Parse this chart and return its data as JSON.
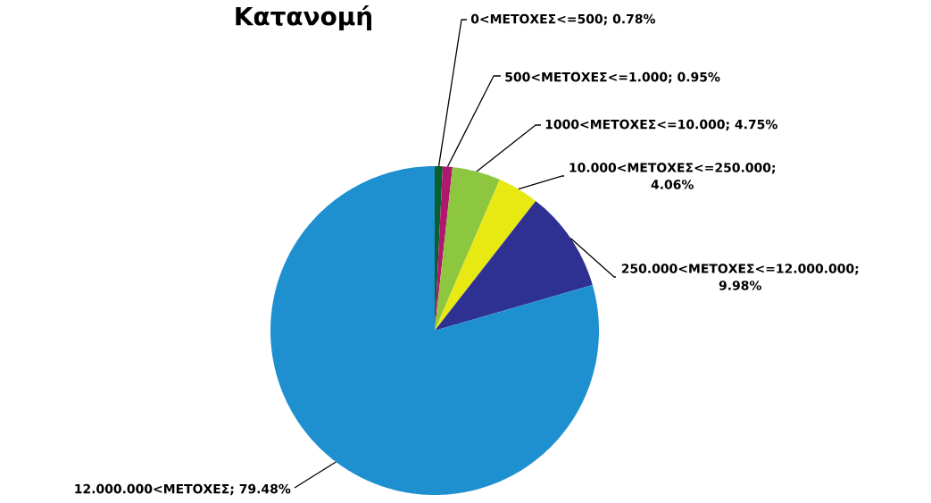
{
  "chart_data": {
    "type": "pie",
    "title": "Κατανομή",
    "categories": [
      "0<ΜΕΤΟΧΕΣ<=500; 0.78%",
      "500<ΜΕΤΟΧΕΣ<=1.000; 0.95%",
      "1000<ΜΕΤΟΧΕΣ<=10.000; 4.75%",
      "10.000<ΜΕΤΟΧΕΣ<=250.000; 4.06%",
      "250.000<ΜΕΤΟΧΕΣ<=12.000.000; 9.98%",
      "12.000.000<ΜΕΤΟΧΕΣ; 79.48%"
    ],
    "values": [
      0.78,
      0.95,
      4.75,
      4.06,
      9.98,
      79.48
    ],
    "colors": [
      "#0b5e2e",
      "#b0176e",
      "#8dc63f",
      "#e8e813",
      "#2e3192",
      "#1e90d0"
    ]
  }
}
